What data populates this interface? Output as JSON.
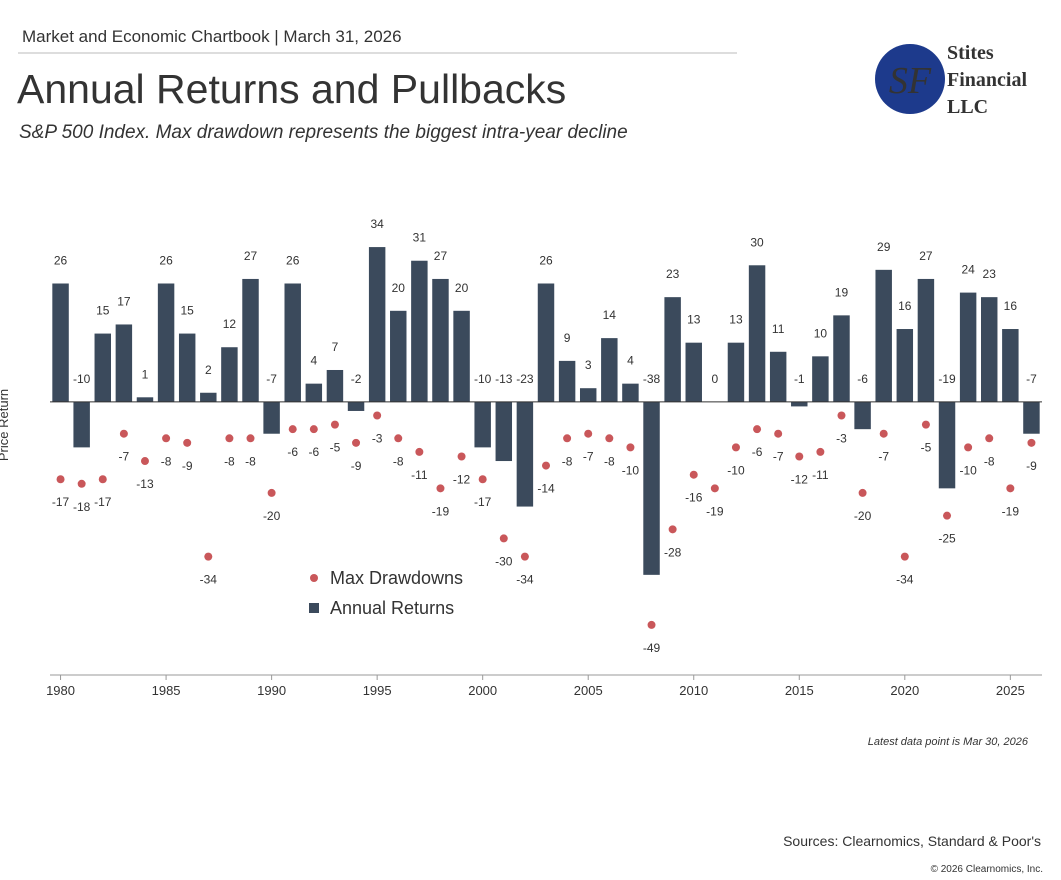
{
  "header": "Market and Economic Chartbook | March 31, 2026",
  "logo": {
    "monogram": "SF",
    "name": [
      "Stites",
      "Financial",
      "LLC"
    ]
  },
  "chart_data": {
    "type": "bar",
    "title": "Annual Returns and Pullbacks",
    "subtitle": "S&P 500 Index. Max drawdown represents the biggest intra-year decline",
    "y_label": "Price Return",
    "x": [
      1980,
      1981,
      1982,
      1983,
      1984,
      1985,
      1986,
      1987,
      1988,
      1989,
      1990,
      1991,
      1992,
      1993,
      1994,
      1995,
      1996,
      1997,
      1998,
      1999,
      2000,
      2001,
      2002,
      2003,
      2004,
      2005,
      2006,
      2007,
      2008,
      2009,
      2010,
      2011,
      2012,
      2013,
      2014,
      2015,
      2016,
      2017,
      2018,
      2019,
      2020,
      2021,
      2022,
      2023,
      2024,
      2025,
      2026
    ],
    "series": [
      {
        "name": "Max Drawdowns",
        "mark": "dot",
        "color": "#c9575a",
        "values": [
          -17,
          -18,
          -17,
          -7,
          -13,
          -8,
          -9,
          -34,
          -8,
          -8,
          -20,
          -6,
          -6,
          -5,
          -9,
          -3,
          -8,
          -11,
          -19,
          -12,
          -17,
          -30,
          -34,
          -14,
          -8,
          -7,
          -8,
          -10,
          -49,
          -28,
          -16,
          -19,
          -10,
          -6,
          -7,
          -12,
          -11,
          -3,
          -20,
          -7,
          -34,
          -5,
          -25,
          -10,
          -8,
          -19,
          -9
        ]
      },
      {
        "name": "Annual Returns",
        "mark": "bar",
        "color": "#3b4a5c",
        "values": [
          26,
          -10,
          15,
          17,
          1,
          26,
          15,
          2,
          12,
          27,
          -7,
          26,
          4,
          7,
          -2,
          34,
          20,
          31,
          27,
          20,
          -10,
          -13,
          -23,
          26,
          9,
          3,
          14,
          4,
          -38,
          23,
          13,
          0,
          13,
          30,
          11,
          -1,
          10,
          19,
          -6,
          29,
          16,
          27,
          -19,
          24,
          23,
          16,
          -7
        ]
      }
    ],
    "xlim": [
      1979.5,
      2026.5
    ],
    "xticks": [
      1980,
      1985,
      1990,
      1995,
      2000,
      2005,
      2010,
      2015,
      2020,
      2025
    ],
    "ylim": [
      -60,
      45
    ],
    "grid": false
  },
  "note": "Latest data point is Mar 30, 2026",
  "source": "Sources: Clearnomics, Standard & Poor's",
  "copyright": "© 2026 Clearnomics, Inc."
}
